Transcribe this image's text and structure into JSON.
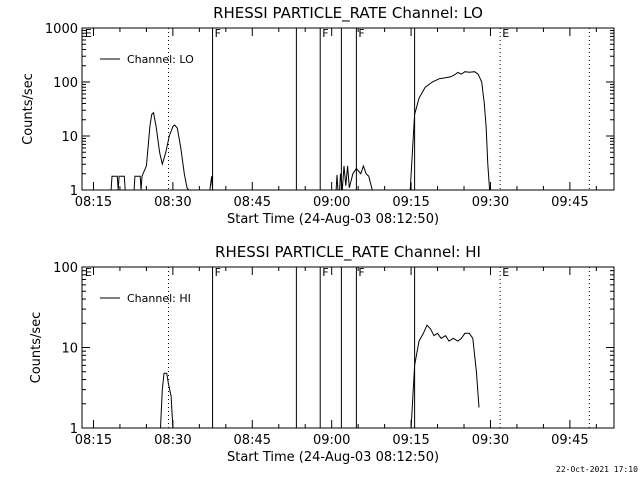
{
  "chart_data": [
    {
      "type": "line",
      "title": "RHESSI PARTICLE_RATE Channel: LO",
      "xlabel": "Start Time (24-Aug-03 08:12:50)",
      "ylabel": "Counts/sec",
      "x_ticks": [
        "08:15",
        "08:30",
        "08:45",
        "09:00",
        "09:15",
        "09:30",
        "09:45"
      ],
      "y_ticks": [
        "1",
        "10",
        "100",
        "1000"
      ],
      "y_scale": "log",
      "xlim": [
        "08:12:50",
        "09:53:20"
      ],
      "ylim": [
        1,
        1000
      ],
      "legend": "Channel: LO",
      "legend_position": "top-left",
      "markers": [
        {
          "time": "08:13:00",
          "label": "E",
          "style": "none"
        },
        {
          "time": "08:29:10",
          "label": "",
          "style": "dotted"
        },
        {
          "time": "08:37:30",
          "label": "F",
          "style": "solid"
        },
        {
          "time": "08:53:20",
          "label": "",
          "style": "solid"
        },
        {
          "time": "08:57:50",
          "label": "F",
          "style": "solid"
        },
        {
          "time": "09:01:50",
          "label": "",
          "style": "solid"
        },
        {
          "time": "09:04:40",
          "label": "F",
          "style": "solid"
        },
        {
          "time": "09:15:40",
          "label": "",
          "style": "solid"
        },
        {
          "time": "09:31:50",
          "label": "E",
          "style": "dotted"
        },
        {
          "time": "09:48:40",
          "label": "",
          "style": "dotted"
        }
      ],
      "series": [
        {
          "segments": [
            [
              [
                "08:18:20",
                1
              ],
              [
                "08:18:30",
                1.8
              ],
              [
                "08:19:30",
                1.8
              ],
              [
                "08:19:40",
                1
              ],
              [
                "08:19:50",
                1.8
              ],
              [
                "08:20:50",
                1.8
              ],
              [
                "08:21:00",
                1
              ]
            ],
            [
              [
                "08:22:40",
                1
              ],
              [
                "08:22:50",
                1.8
              ],
              [
                "08:23:50",
                1.8
              ],
              [
                "08:24:00",
                1
              ],
              [
                "08:24:10",
                1.8
              ],
              [
                "08:25:00",
                2.8
              ],
              [
                "08:25:40",
                15
              ],
              [
                "08:26:00",
                25
              ],
              [
                "08:26:20",
                27
              ],
              [
                "08:26:50",
                15
              ],
              [
                "08:27:30",
                5
              ],
              [
                "08:28:00",
                3
              ],
              [
                "08:28:40",
                5
              ],
              [
                "08:29:20",
                10
              ],
              [
                "08:30:00",
                15
              ],
              [
                "08:30:20",
                16
              ],
              [
                "08:30:50",
                14
              ],
              [
                "08:31:30",
                6
              ],
              [
                "08:32:10",
                2
              ],
              [
                "08:32:40",
                1.1
              ],
              [
                "08:33:00",
                1
              ]
            ],
            [
              [
                "08:37:00",
                1
              ],
              [
                "08:37:20",
                1.8
              ],
              [
                "08:37:30",
                1
              ]
            ],
            [
              [
                "09:00:50",
                1
              ],
              [
                "09:01:00",
                1.9
              ],
              [
                "09:01:10",
                1
              ],
              [
                "09:01:30",
                1
              ],
              [
                "09:01:40",
                2
              ],
              [
                "09:02:00",
                1
              ],
              [
                "09:02:20",
                2.8
              ],
              [
                "09:02:40",
                1.2
              ],
              [
                "09:03:00",
                2.8
              ],
              [
                "09:03:20",
                1.1
              ],
              [
                "09:04:00",
                2
              ],
              [
                "09:04:40",
                2.5
              ],
              [
                "09:05:30",
                2
              ],
              [
                "09:06:00",
                2.8
              ],
              [
                "09:06:30",
                2
              ],
              [
                "09:07:00",
                1.8
              ],
              [
                "09:07:40",
                1
              ]
            ],
            [
              [
                "09:14:50",
                1
              ],
              [
                "09:15:40",
                25
              ],
              [
                "09:16:30",
                50
              ],
              [
                "09:17:40",
                80
              ],
              [
                "09:19:00",
                100
              ],
              [
                "09:20:20",
                115
              ],
              [
                "09:21:30",
                120
              ],
              [
                "09:22:30",
                125
              ],
              [
                "09:23:10",
                135
              ],
              [
                "09:23:50",
                150
              ],
              [
                "09:24:30",
                140
              ],
              [
                "09:25:10",
                155
              ],
              [
                "09:26:00",
                152
              ],
              [
                "09:27:00",
                155
              ],
              [
                "09:27:40",
                140
              ],
              [
                "09:28:20",
                100
              ],
              [
                "09:28:50",
                40
              ],
              [
                "09:29:10",
                15
              ],
              [
                "09:29:30",
                3
              ],
              [
                "09:29:50",
                1
              ]
            ]
          ]
        }
      ]
    },
    {
      "type": "line",
      "title": "RHESSI PARTICLE_RATE Channel: HI",
      "xlabel": "Start Time (24-Aug-03 08:12:50)",
      "ylabel": "Counts/sec",
      "x_ticks": [
        "08:15",
        "08:30",
        "08:45",
        "09:00",
        "09:15",
        "09:30",
        "09:45"
      ],
      "y_ticks": [
        "1",
        "10",
        "100"
      ],
      "y_scale": "log",
      "xlim": [
        "08:12:50",
        "09:53:20"
      ],
      "ylim": [
        1,
        100
      ],
      "legend": "Channel: HI",
      "legend_position": "top-left",
      "markers": [
        {
          "time": "08:13:00",
          "label": "E",
          "style": "none"
        },
        {
          "time": "08:29:10",
          "label": "",
          "style": "dotted"
        },
        {
          "time": "08:37:30",
          "label": "F",
          "style": "solid"
        },
        {
          "time": "08:53:20",
          "label": "",
          "style": "solid"
        },
        {
          "time": "08:57:50",
          "label": "F",
          "style": "solid"
        },
        {
          "time": "09:01:50",
          "label": "",
          "style": "solid"
        },
        {
          "time": "09:04:40",
          "label": "F",
          "style": "solid"
        },
        {
          "time": "09:15:40",
          "label": "",
          "style": "solid"
        },
        {
          "time": "09:31:50",
          "label": "E",
          "style": "dotted"
        },
        {
          "time": "09:48:40",
          "label": "",
          "style": "dotted"
        }
      ],
      "series": [
        {
          "segments": [
            [
              [
                "08:27:40",
                1
              ],
              [
                "08:28:00",
                3
              ],
              [
                "08:28:20",
                4.8
              ],
              [
                "08:28:50",
                4.8
              ],
              [
                "08:29:10",
                3.5
              ],
              [
                "08:29:40",
                2.5
              ],
              [
                "08:30:00",
                1
              ]
            ],
            [
              [
                "09:15:00",
                1
              ],
              [
                "09:15:40",
                6
              ],
              [
                "09:16:30",
                12
              ],
              [
                "09:17:20",
                15
              ],
              [
                "09:18:00",
                19
              ],
              [
                "09:18:40",
                17
              ],
              [
                "09:19:20",
                14
              ],
              [
                "09:20:00",
                15
              ],
              [
                "09:20:40",
                13
              ],
              [
                "09:21:30",
                14
              ],
              [
                "09:22:10",
                12
              ],
              [
                "09:23:00",
                13
              ],
              [
                "09:23:50",
                12
              ],
              [
                "09:24:30",
                13
              ],
              [
                "09:25:10",
                15
              ],
              [
                "09:26:00",
                15
              ],
              [
                "09:26:40",
                13
              ],
              [
                "09:27:20",
                5
              ],
              [
                "09:27:50",
                1.8
              ]
            ]
          ]
        }
      ]
    }
  ],
  "footer": {
    "timestamp": "22-Oct-2021 17:10"
  }
}
